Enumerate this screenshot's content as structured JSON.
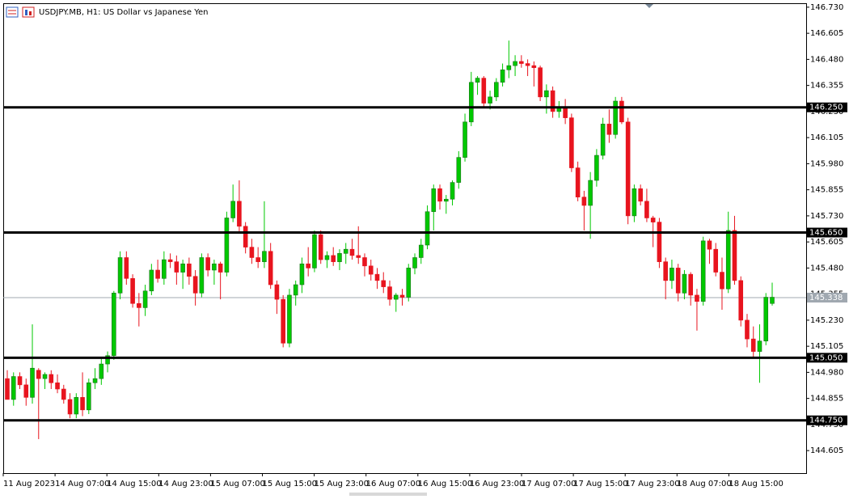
{
  "chart_data": {
    "type": "candlestick",
    "title": "USDJPY.MB, H1:  US Dollar vs Japanese Yen",
    "x_labels": [
      "11 Aug 2023",
      "14 Aug 07:00",
      "14 Aug 15:00",
      "14 Aug 23:00",
      "15 Aug 07:00",
      "15 Aug 15:00",
      "15 Aug 23:00",
      "16 Aug 07:00",
      "16 Aug 15:00",
      "16 Aug 23:00",
      "17 Aug 07:00",
      "17 Aug 15:00",
      "17 Aug 23:00",
      "18 Aug 07:00",
      "18 Aug 15:00"
    ],
    "open": [
      144.95,
      144.85,
      144.96,
      144.92,
      144.86,
      144.99,
      144.95,
      144.97,
      144.93,
      144.9,
      144.85,
      144.78,
      144.86,
      144.8,
      144.93,
      144.95,
      145.02,
      145.06,
      145.36,
      145.53,
      145.43,
      145.31,
      145.29,
      145.37,
      145.47,
      145.43,
      145.52,
      145.51,
      145.46,
      145.5,
      145.44,
      145.36,
      145.53,
      145.47,
      145.5,
      145.46,
      145.72,
      145.8,
      145.68,
      145.58,
      145.53,
      145.51,
      145.56,
      145.4,
      145.33,
      145.12,
      145.35,
      145.4,
      145.5,
      145.48,
      145.64,
      145.52,
      145.54,
      145.51,
      145.55,
      145.57,
      145.54,
      145.53,
      145.49,
      145.45,
      145.42,
      145.39,
      145.33,
      145.35,
      145.34,
      145.48,
      145.53,
      145.59,
      145.75,
      145.86,
      145.8,
      145.81,
      145.89,
      146.01,
      146.18,
      146.37,
      146.39,
      146.27,
      146.3,
      146.37,
      146.43,
      146.45,
      146.47,
      146.46,
      146.45,
      146.44,
      146.3,
      146.33,
      146.23,
      146.25,
      146.2,
      145.96,
      145.82,
      145.78,
      145.9,
      146.02,
      146.17,
      146.12,
      146.28,
      146.18,
      145.73,
      145.86,
      145.8,
      145.72,
      145.7,
      145.51,
      145.42,
      145.48,
      145.36,
      145.45,
      145.35,
      145.32,
      145.61,
      145.57,
      145.46,
      145.38,
      145.66,
      145.42,
      145.23,
      145.14,
      145.08,
      145.13,
      145.31
    ],
    "high": [
      144.99,
      144.98,
      144.98,
      144.95,
      145.21,
      145.0,
      144.98,
      144.99,
      144.97,
      144.92,
      144.88,
      144.88,
      144.98,
      144.95,
      145.0,
      145.05,
      145.08,
      145.37,
      145.56,
      145.56,
      145.45,
      145.36,
      145.4,
      145.5,
      145.52,
      145.56,
      145.55,
      145.54,
      145.52,
      145.53,
      145.47,
      145.55,
      145.55,
      145.52,
      145.51,
      145.75,
      145.88,
      145.9,
      145.7,
      145.62,
      145.58,
      145.8,
      145.6,
      145.42,
      145.35,
      145.38,
      145.42,
      145.53,
      145.58,
      145.66,
      145.66,
      145.56,
      145.58,
      145.57,
      145.6,
      145.62,
      145.68,
      145.55,
      145.52,
      145.48,
      145.46,
      145.42,
      145.36,
      145.38,
      145.5,
      145.55,
      145.62,
      145.78,
      145.88,
      145.88,
      145.83,
      145.9,
      146.04,
      146.22,
      146.42,
      146.4,
      146.4,
      146.33,
      146.39,
      146.46,
      146.57,
      146.5,
      146.5,
      146.48,
      146.47,
      146.45,
      146.36,
      146.35,
      146.28,
      146.29,
      146.22,
      145.99,
      145.85,
      145.94,
      146.05,
      146.2,
      146.24,
      146.3,
      146.3,
      146.2,
      145.88,
      145.88,
      145.86,
      145.73,
      145.72,
      145.53,
      145.52,
      145.5,
      145.47,
      145.46,
      145.38,
      145.63,
      145.62,
      145.6,
      145.53,
      145.75,
      145.73,
      145.44,
      145.26,
      145.2,
      145.21,
      145.36,
      145.41
    ],
    "low": [
      144.85,
      144.82,
      144.9,
      144.82,
      144.83,
      144.66,
      144.9,
      144.9,
      144.88,
      144.83,
      144.76,
      144.76,
      144.77,
      144.78,
      144.9,
      144.92,
      144.98,
      145.04,
      145.33,
      145.4,
      145.29,
      145.2,
      145.25,
      145.35,
      145.41,
      145.4,
      145.48,
      145.4,
      145.38,
      145.4,
      145.3,
      145.34,
      145.44,
      145.4,
      145.33,
      145.44,
      145.7,
      145.65,
      145.55,
      145.5,
      145.48,
      145.48,
      145.38,
      145.26,
      145.1,
      145.1,
      145.3,
      145.36,
      145.44,
      145.46,
      145.5,
      145.48,
      145.49,
      145.47,
      145.5,
      145.52,
      145.5,
      145.44,
      145.42,
      145.38,
      145.36,
      145.3,
      145.27,
      145.3,
      145.32,
      145.45,
      145.5,
      145.57,
      145.66,
      145.76,
      145.74,
      145.78,
      145.86,
      145.99,
      146.16,
      146.31,
      146.25,
      146.24,
      146.28,
      146.35,
      146.39,
      146.4,
      146.44,
      146.4,
      146.35,
      146.28,
      146.22,
      146.2,
      146.2,
      146.17,
      145.94,
      145.8,
      145.66,
      145.62,
      145.87,
      146.0,
      146.08,
      146.1,
      146.17,
      145.69,
      145.7,
      145.78,
      145.7,
      145.58,
      145.48,
      145.33,
      145.38,
      145.32,
      145.33,
      145.3,
      145.18,
      145.3,
      145.5,
      145.44,
      145.28,
      145.36,
      145.4,
      145.2,
      145.1,
      145.05,
      144.93,
      145.11,
      145.3
    ],
    "close": [
      144.85,
      144.96,
      144.92,
      144.86,
      145.0,
      144.95,
      144.97,
      144.93,
      144.9,
      144.85,
      144.78,
      144.86,
      144.8,
      144.93,
      144.95,
      145.02,
      145.06,
      145.36,
      145.53,
      145.43,
      145.31,
      145.29,
      145.37,
      145.47,
      145.43,
      145.52,
      145.51,
      145.46,
      145.5,
      145.44,
      145.36,
      145.53,
      145.47,
      145.5,
      145.46,
      145.72,
      145.8,
      145.68,
      145.58,
      145.53,
      145.51,
      145.56,
      145.4,
      145.33,
      145.12,
      145.35,
      145.4,
      145.5,
      145.48,
      145.64,
      145.52,
      145.54,
      145.51,
      145.55,
      145.57,
      145.54,
      145.53,
      145.49,
      145.45,
      145.42,
      145.39,
      145.33,
      145.35,
      145.34,
      145.48,
      145.53,
      145.59,
      145.75,
      145.86,
      145.8,
      145.81,
      145.89,
      146.01,
      146.18,
      146.37,
      146.39,
      146.27,
      146.3,
      146.37,
      146.43,
      146.45,
      146.47,
      146.46,
      146.45,
      146.44,
      146.3,
      146.33,
      146.23,
      146.25,
      146.2,
      145.96,
      145.82,
      145.78,
      145.9,
      146.02,
      146.17,
      146.12,
      146.28,
      146.18,
      145.73,
      145.86,
      145.8,
      145.72,
      145.7,
      145.51,
      145.42,
      145.48,
      145.36,
      145.45,
      145.35,
      145.32,
      145.61,
      145.57,
      145.46,
      145.38,
      145.66,
      145.42,
      145.23,
      145.14,
      145.08,
      145.13,
      145.34,
      145.34
    ],
    "up_color": "#00c800",
    "down_color": "#e8141e",
    "ylim": [
      144.497,
      146.749
    ],
    "yticks": [
      {
        "value": 146.73,
        "label": "146.730"
      },
      {
        "value": 146.605,
        "label": "146.605"
      },
      {
        "value": 146.48,
        "label": "146.480"
      },
      {
        "value": 146.355,
        "label": "146.355"
      },
      {
        "value": 146.23,
        "label": "146.230"
      },
      {
        "value": 146.105,
        "label": "146.105"
      },
      {
        "value": 145.98,
        "label": "145.980"
      },
      {
        "value": 145.855,
        "label": "145.855"
      },
      {
        "value": 145.73,
        "label": "145.730"
      },
      {
        "value": 145.605,
        "label": "145.605"
      },
      {
        "value": 145.48,
        "label": "145.480"
      },
      {
        "value": 145.355,
        "label": "145.355"
      },
      {
        "value": 145.23,
        "label": "145.230"
      },
      {
        "value": 145.105,
        "label": "145.105"
      },
      {
        "value": 144.98,
        "label": "144.980"
      },
      {
        "value": 144.855,
        "label": "144.855"
      },
      {
        "value": 144.73,
        "label": "144.730"
      },
      {
        "value": 144.605,
        "label": "144.605"
      }
    ],
    "levels": [
      {
        "value": 146.25,
        "label": "146.250"
      },
      {
        "value": 145.65,
        "label": "145.650"
      },
      {
        "value": 145.05,
        "label": "145.050"
      },
      {
        "value": 144.75,
        "label": "144.750"
      }
    ],
    "last_price": {
      "value": 145.338,
      "label": "145.338"
    }
  }
}
